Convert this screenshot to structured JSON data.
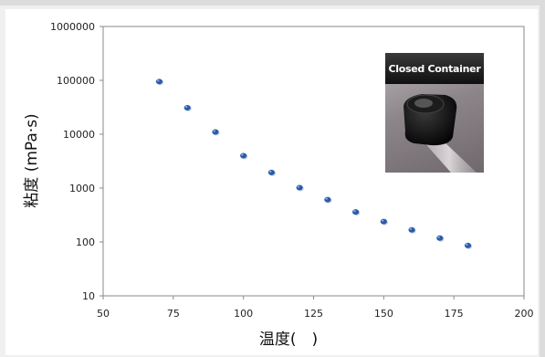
{
  "chart_data": {
    "type": "scatter",
    "title": "",
    "xlabel": "温度(　)",
    "ylabel": "粘度 (mPa·s)",
    "yscale": "log",
    "xlim": [
      50,
      200
    ],
    "ylim": [
      10,
      1000000
    ],
    "x_ticks": [
      "50",
      "75",
      "100",
      "125",
      "150",
      "175",
      "200"
    ],
    "y_ticks": [
      "1000000",
      "100000",
      "10000",
      "1000",
      "100",
      "10"
    ],
    "grid": false,
    "series": [
      {
        "color": "#2a5ba8",
        "points": [
          {
            "x": 70,
            "y": 95000
          },
          {
            "x": 80,
            "y": 31000
          },
          {
            "x": 90,
            "y": 11000
          },
          {
            "x": 100,
            "y": 4000
          },
          {
            "x": 110,
            "y": 1950
          },
          {
            "x": 120,
            "y": 1020
          },
          {
            "x": 130,
            "y": 610
          },
          {
            "x": 140,
            "y": 360
          },
          {
            "x": 150,
            "y": 240
          },
          {
            "x": 160,
            "y": 168
          },
          {
            "x": 170,
            "y": 118
          },
          {
            "x": 180,
            "y": 86
          }
        ]
      }
    ]
  },
  "inset": {
    "label": "Closed Container",
    "image": "closed-container-photo"
  }
}
